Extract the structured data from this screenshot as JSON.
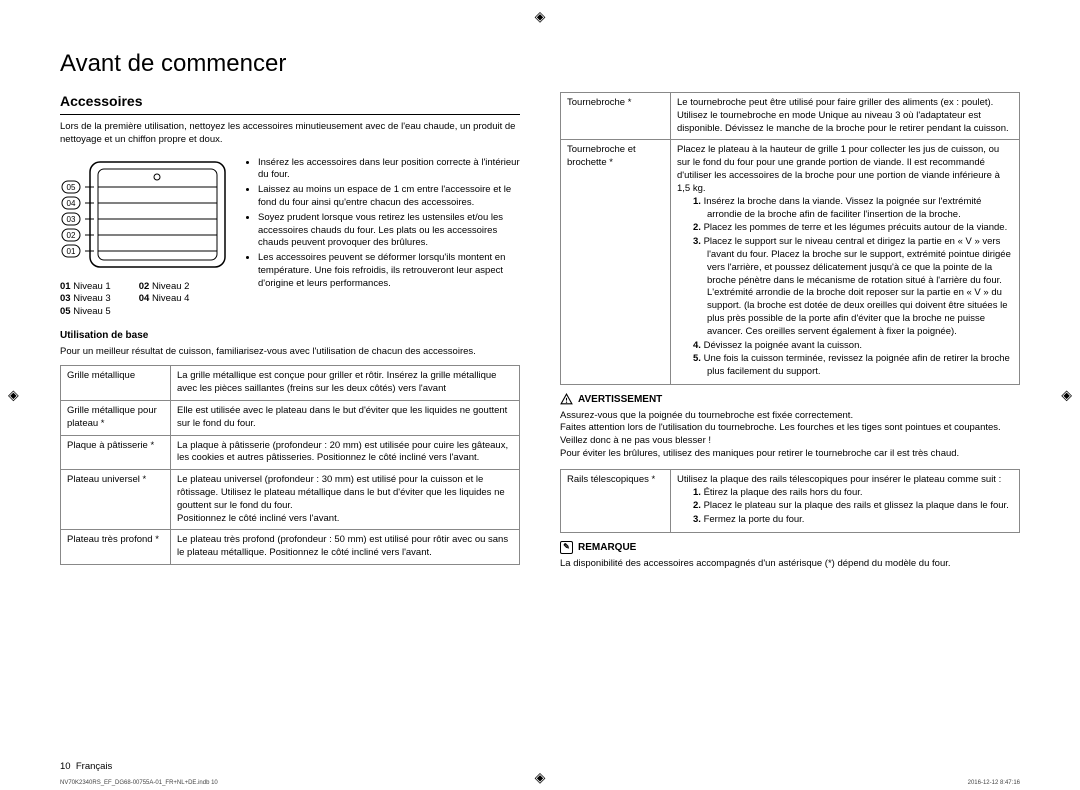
{
  "title": "Avant de commencer",
  "section": "Accessoires",
  "intro": "Lors de la première utilisation, nettoyez les accessoires minutieusement avec de l'eau chaude, un produit de nettoyage et un chiffon propre et doux.",
  "bullets": [
    "Insérez les accessoires dans leur position correcte à l'intérieur du four.",
    "Laissez au moins un espace de 1 cm entre l'accessoire et le fond du four ainsi qu'entre chacun des accessoires.",
    "Soyez prudent lorsque vous retirez les ustensiles et/ou les accessoires chauds du four. Les plats ou les accessoires chauds peuvent provoquer des brûlures.",
    "Les accessoires peuvent se déformer lorsqu'ils montent en température. Une fois refroidis, ils retrouveront leur aspect d'origine et leurs performances."
  ],
  "levels": {
    "01": "Niveau 1",
    "02": "Niveau 2",
    "03": "Niveau 3",
    "04": "Niveau 4",
    "05": "Niveau 5"
  },
  "basic": {
    "title": "Utilisation de base",
    "intro": "Pour un meilleur résultat de cuisson, familiarisez-vous avec l'utilisation de chacun des accessoires."
  },
  "t1": [
    [
      "Grille métallique",
      "La grille métallique est conçue pour griller et rôtir. Insérez la grille métallique avec les pièces saillantes (freins sur les deux côtés) vers l'avant"
    ],
    [
      "Grille métallique pour plateau *",
      "Elle est utilisée avec le plateau dans le but d'éviter que les liquides ne gouttent sur le fond du four."
    ],
    [
      "Plaque à pâtisserie *",
      "La plaque à pâtisserie (profondeur : 20 mm) est utilisée pour cuire les gâteaux, les cookies et autres pâtisseries. Positionnez le côté incliné vers l'avant."
    ],
    [
      "Plateau universel *",
      "Le plateau universel (profondeur : 30 mm) est utilisé pour la cuisson et le rôtissage. Utilisez le plateau métallique dans le but d'éviter que les liquides ne gouttent sur le fond du four.\nPositionnez le côté incliné vers l'avant."
    ],
    [
      "Plateau très profond *",
      "Le plateau très profond (profondeur : 50 mm) est utilisé pour rôtir avec ou sans le plateau métallique. Positionnez le côté incliné vers l'avant."
    ]
  ],
  "t2a": [
    [
      "Tournebroche *",
      "Le tournebroche peut être utilisé pour faire griller des aliments (ex : poulet). Utilisez le tournebroche en mode Unique au niveau 3 où l'adaptateur est disponible. Dévissez le manche de la broche pour le retirer pendant la cuisson."
    ]
  ],
  "t2b": {
    "h": "Tournebroche et brochette *",
    "intro": "Placez le plateau à la hauteur de grille 1 pour collecter les jus de cuisson, ou sur le fond du four pour une grande portion de viande. Il est recommandé d'utiliser les accessoires de la broche pour une portion de viande inférieure à 1,5 kg.",
    "steps": [
      "Insérez la broche dans la viande. Vissez la poignée sur l'extrémité arrondie de la broche afin de faciliter l'insertion de la broche.",
      "Placez les pommes de terre et les légumes précuits autour de la viande.",
      "Placez le support sur le niveau central et dirigez la partie en « V » vers l'avant du four. Placez la broche sur le support, extrémité pointue dirigée vers l'arrière, et poussez délicatement jusqu'à ce que la pointe de la broche pénètre dans le mécanisme de rotation situé à l'arrière du four. L'extrémité arrondie de la broche doit reposer sur la partie en « V » du support. (la broche est dotée de deux oreilles qui doivent être situées le plus près possible de la porte afin d'éviter que la broche ne puisse avancer. Ces oreilles servent également à fixer la poignée).",
      "Dévissez la poignée avant la cuisson.",
      "Une fois la cuisson terminée, revissez la poignée afin de retirer la broche plus facilement du support."
    ]
  },
  "warn": {
    "title": "AVERTISSEMENT",
    "body": "Assurez-vous que la poignée du tournebroche est fixée correctement.\nFaites attention lors de l'utilisation du tournebroche. Les fourches et les tiges sont pointues et coupantes. Veillez donc à ne pas vous blesser !\nPour éviter les brûlures, utilisez des maniques pour retirer le tournebroche car il est très chaud."
  },
  "t2c": {
    "h": "Rails télescopiques *",
    "intro": "Utilisez la plaque des rails télescopiques pour insérer le plateau comme suit :",
    "steps": [
      "Étirez la plaque des rails hors du four.",
      "Placez le plateau sur la plaque des rails et glissez la plaque dans le four.",
      "Fermez la porte du four."
    ]
  },
  "rem": {
    "title": "REMARQUE",
    "body": "La disponibilité des accessoires accompagnés d'un astérisque (*) dépend du modèle du four."
  },
  "footer": {
    "page": "10",
    "lang": "Français",
    "file": "NV70K2340RS_EF_DG68-00755A-01_FR+NL+DE.indb   10",
    "ts": "2016-12-12   8:47:16"
  }
}
